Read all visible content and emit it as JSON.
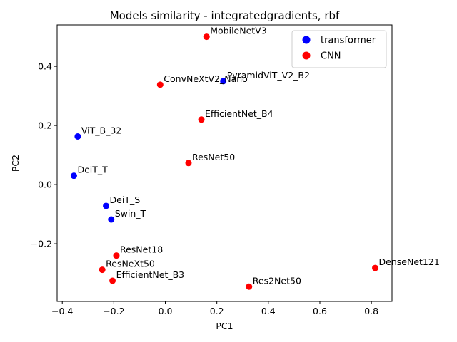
{
  "chart_data": {
    "type": "scatter",
    "title": "Models similarity - integratedgradients, rbf",
    "xlabel": "PC1",
    "ylabel": "PC2",
    "xlim": [
      -0.42,
      0.88
    ],
    "ylim": [
      -0.395,
      0.54
    ],
    "xticks": [
      -0.4,
      -0.2,
      0.0,
      0.2,
      0.4,
      0.6,
      0.8
    ],
    "yticks": [
      -0.2,
      0.0,
      0.2,
      0.4
    ],
    "xtick_labels": [
      "−0.4",
      "−0.2",
      "0.0",
      "0.2",
      "0.4",
      "0.6",
      "0.8"
    ],
    "ytick_labels": [
      "−0.2",
      "0.0",
      "0.2",
      "0.4"
    ],
    "grid": false,
    "legend_position": "top-right",
    "series": [
      {
        "name": "transformer",
        "color": "#0000ff",
        "points": [
          {
            "label": "PyramidViT_V2_B2",
            "x": 0.225,
            "y": 0.35
          },
          {
            "label": "ViT_B_32",
            "x": -0.34,
            "y": 0.163
          },
          {
            "label": "DeiT_T",
            "x": -0.355,
            "y": 0.03
          },
          {
            "label": "DeiT_S",
            "x": -0.23,
            "y": -0.072
          },
          {
            "label": "Swin_T",
            "x": -0.21,
            "y": -0.118
          }
        ]
      },
      {
        "name": "CNN",
        "color": "#ff0000",
        "points": [
          {
            "label": "MobileNetV3",
            "x": 0.16,
            "y": 0.5
          },
          {
            "label": "ConvNeXtV2_Nano",
            "x": -0.02,
            "y": 0.338
          },
          {
            "label": "EfficientNet_B4",
            "x": 0.14,
            "y": 0.22
          },
          {
            "label": "ResNet50",
            "x": 0.09,
            "y": 0.073
          },
          {
            "label": "ResNet18",
            "x": -0.19,
            "y": -0.24
          },
          {
            "label": "ResNeXt50",
            "x": -0.245,
            "y": -0.288
          },
          {
            "label": "EfficientNet_B3",
            "x": -0.205,
            "y": -0.325
          },
          {
            "label": "DenseNet121",
            "x": 0.815,
            "y": -0.282
          },
          {
            "label": "Res2Net50",
            "x": 0.325,
            "y": -0.345
          }
        ]
      }
    ]
  }
}
